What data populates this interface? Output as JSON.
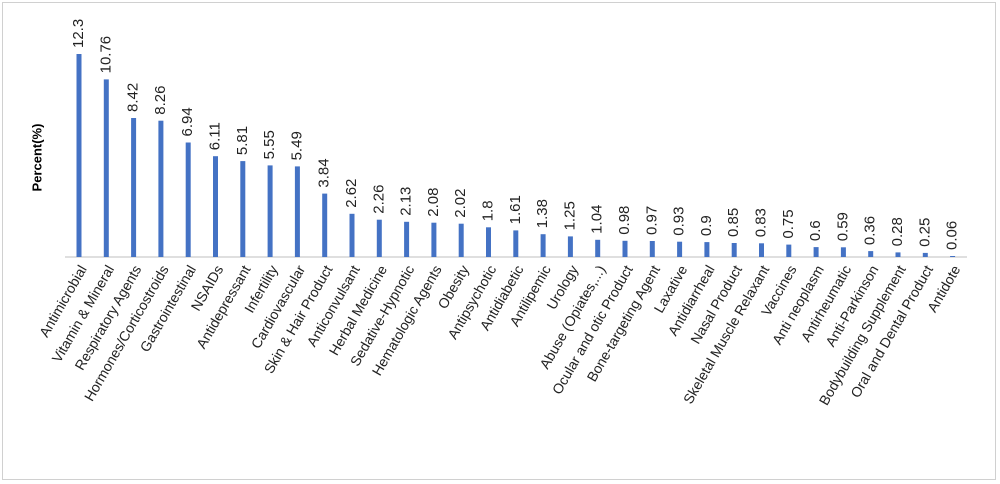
{
  "chart_data": {
    "type": "bar",
    "ylabel": "Percent(%)",
    "xlabel": "",
    "title": "",
    "ylim": [
      0,
      12.3
    ],
    "grid": false,
    "bar_color": "#4472C4",
    "categories": [
      "Antimicrobial",
      "Vitamin & Mineral",
      "Respiratory Agents",
      "Hormones/Corticostroids",
      "Gastrointestinal",
      "NSAIDs",
      "Antidepressant",
      "Infertility",
      "Cardiovascular",
      "Skin & Hair Product",
      "Anticonvulsant",
      "Herbal Medicine",
      "Sedative-Hypnotic",
      "Hematologic Agents",
      "Obesity",
      "Antipsychotic",
      "Antidiabetic",
      "Antilipemic",
      "Urology",
      "Abuse (Opiates,...)",
      "Ocular and otic Product",
      "Bone-targeting Agent",
      "Laxative",
      "Antidiarrheal",
      "Nasal Product",
      "Skeletal Muscle Relaxant",
      "Vaccines",
      "Anti neoplasm",
      "Antirheumatic",
      "Anti-Parkinson",
      "Bodybuilding Supplement",
      "Oral and Dental Product",
      "Antidote"
    ],
    "values": [
      12.3,
      10.76,
      8.42,
      8.26,
      6.94,
      6.11,
      5.81,
      5.55,
      5.49,
      3.84,
      2.62,
      2.26,
      2.13,
      2.08,
      2.02,
      1.8,
      1.61,
      1.38,
      1.25,
      1.04,
      0.98,
      0.97,
      0.93,
      0.9,
      0.85,
      0.83,
      0.75,
      0.6,
      0.59,
      0.36,
      0.28,
      0.25,
      0.06
    ],
    "value_labels": [
      "12.3",
      "10.76",
      "8.42",
      "8.26",
      "6.94",
      "6.11",
      "5.81",
      "5.55",
      "5.49",
      "3.84",
      "2.62",
      "2.26",
      "2.13",
      "2.08",
      "2.02",
      "1.8",
      "1.61",
      "1.38",
      "1.25",
      "1.04",
      "0.98",
      "0.97",
      "0.93",
      "0.9",
      "0.85",
      "0.83",
      "0.75",
      "0.6",
      "0.59",
      "0.36",
      "0.28",
      "0.25",
      "0.06"
    ]
  }
}
